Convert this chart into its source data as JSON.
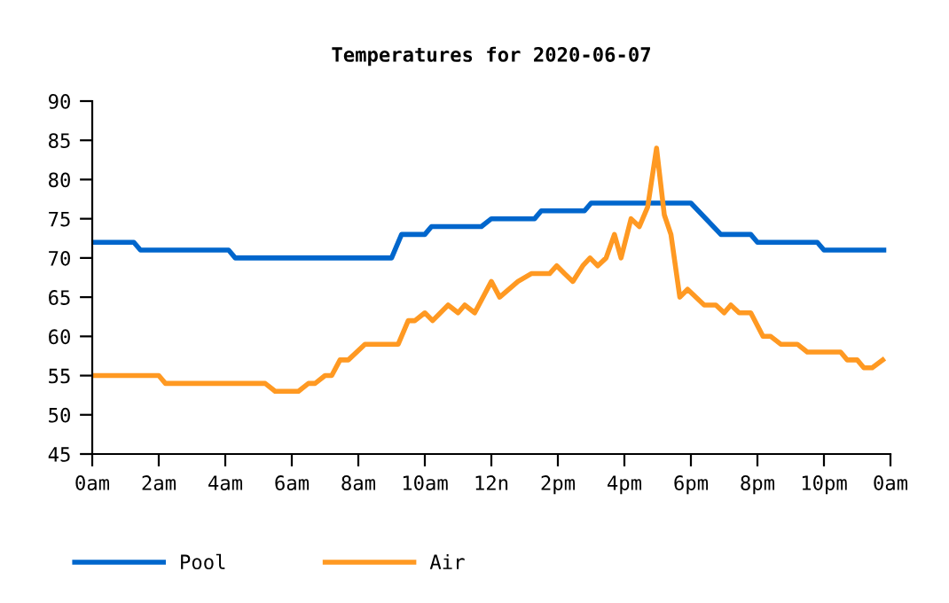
{
  "chart_data": {
    "type": "line",
    "title": "Temperatures for 2020-06-07",
    "xlim": [
      "2020-06-07T00:00",
      "2020-06-08T00:00"
    ],
    "ylim": [
      45,
      90
    ],
    "xticks": [
      {
        "value": "2020-06-07T00:00",
        "label": "0am"
      },
      {
        "value": "2020-06-07T02:00",
        "label": "2am"
      },
      {
        "value": "2020-06-07T04:00",
        "label": "4am"
      },
      {
        "value": "2020-06-07T06:00",
        "label": "6am"
      },
      {
        "value": "2020-06-07T08:00",
        "label": "8am"
      },
      {
        "value": "2020-06-07T10:00",
        "label": "10am"
      },
      {
        "value": "2020-06-07T12:00",
        "label": "12n"
      },
      {
        "value": "2020-06-07T14:00",
        "label": "2pm"
      },
      {
        "value": "2020-06-07T16:00",
        "label": "4pm"
      },
      {
        "value": "2020-06-07T18:00",
        "label": "6pm"
      },
      {
        "value": "2020-06-07T20:00",
        "label": "8pm"
      },
      {
        "value": "2020-06-07T22:00",
        "label": "10pm"
      },
      {
        "value": "2020-06-08T00:00",
        "label": "0am"
      }
    ],
    "yticks": [
      45,
      50,
      55,
      60,
      65,
      70,
      75,
      80,
      85,
      90
    ],
    "grid": false,
    "legend": "bottom left",
    "marker": "none",
    "line_style": "solid",
    "series": [
      {
        "name": "Pool",
        "color": "#0066cc",
        "x": [
          "2020-06-07T00:00",
          "2020-06-07T01:15",
          "2020-06-07T01:27",
          "2020-06-07T04:06",
          "2020-06-07T04:18",
          "2020-06-07T09:00",
          "2020-06-07T09:18",
          "2020-06-07T10:00",
          "2020-06-07T10:12",
          "2020-06-07T11:42",
          "2020-06-07T12:00",
          "2020-06-07T13:18",
          "2020-06-07T13:30",
          "2020-06-07T14:48",
          "2020-06-07T15:00",
          "2020-06-07T18:00",
          "2020-06-07T18:54",
          "2020-06-07T19:48",
          "2020-06-07T20:00",
          "2020-06-07T21:48",
          "2020-06-07T22:00",
          "2020-06-07T23:48"
        ],
        "values": [
          72,
          72,
          71,
          71,
          70,
          70,
          73,
          73,
          74,
          74,
          75,
          75,
          76,
          76,
          77,
          77,
          73,
          73,
          72,
          72,
          71,
          71
        ]
      },
      {
        "name": "Air",
        "color": "#ff9922",
        "x": [
          "2020-06-07T00:00",
          "2020-06-07T02:00",
          "2020-06-07T02:12",
          "2020-06-07T05:12",
          "2020-06-07T05:30",
          "2020-06-07T06:12",
          "2020-06-07T06:30",
          "2020-06-07T06:42",
          "2020-06-07T07:00",
          "2020-06-07T07:12",
          "2020-06-07T07:27",
          "2020-06-07T07:42",
          "2020-06-07T08:12",
          "2020-06-07T09:12",
          "2020-06-07T09:30",
          "2020-06-07T09:42",
          "2020-06-07T10:00",
          "2020-06-07T10:14",
          "2020-06-07T10:42",
          "2020-06-07T11:00",
          "2020-06-07T11:12",
          "2020-06-07T11:30",
          "2020-06-07T12:00",
          "2020-06-07T12:15",
          "2020-06-07T12:48",
          "2020-06-07T13:12",
          "2020-06-07T13:45",
          "2020-06-07T13:58",
          "2020-06-07T14:12",
          "2020-06-07T14:27",
          "2020-06-07T14:45",
          "2020-06-07T14:58",
          "2020-06-07T15:12",
          "2020-06-07T15:27",
          "2020-06-07T15:42",
          "2020-06-07T15:54",
          "2020-06-07T16:12",
          "2020-06-07T16:27",
          "2020-06-07T16:42",
          "2020-06-07T16:58",
          "2020-06-07T17:12",
          "2020-06-07T17:24",
          "2020-06-07T17:40",
          "2020-06-07T17:54",
          "2020-06-07T18:24",
          "2020-06-07T18:45",
          "2020-06-07T19:00",
          "2020-06-07T19:12",
          "2020-06-07T19:27",
          "2020-06-07T19:48",
          "2020-06-07T20:10",
          "2020-06-07T20:24",
          "2020-06-07T20:42",
          "2020-06-07T21:12",
          "2020-06-07T21:30",
          "2020-06-07T22:30",
          "2020-06-07T22:42",
          "2020-06-07T23:00",
          "2020-06-07T23:12",
          "2020-06-07T23:27",
          "2020-06-07T23:46"
        ],
        "values": [
          55,
          55,
          54,
          54,
          53,
          53,
          54,
          54,
          55,
          55,
          57,
          57,
          59,
          59,
          62,
          62,
          63,
          62,
          64,
          63,
          64,
          63,
          67,
          65,
          67,
          68,
          68,
          69,
          68,
          67,
          69,
          70,
          69,
          70,
          73,
          70,
          75,
          74,
          76.5,
          84,
          75.5,
          73,
          65,
          66,
          64,
          64,
          63,
          64,
          63,
          63,
          60,
          60,
          59,
          59,
          58,
          58,
          57,
          57,
          56,
          56,
          57
        ]
      }
    ]
  }
}
